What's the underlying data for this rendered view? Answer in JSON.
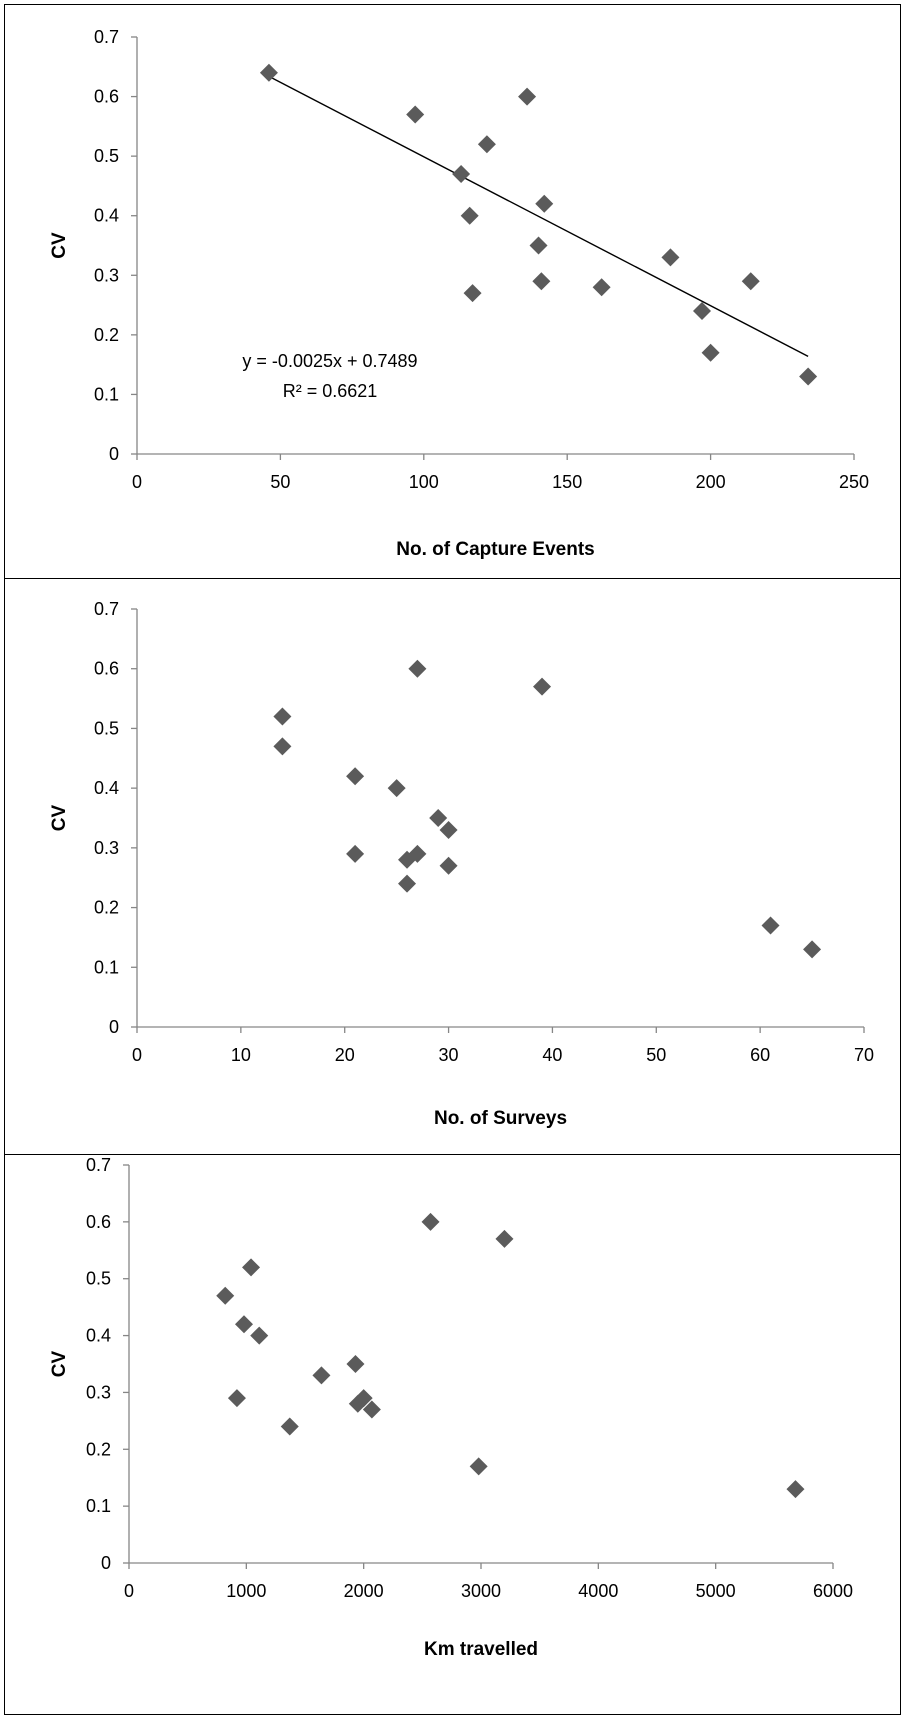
{
  "chart_data": [
    {
      "type": "scatter",
      "xlabel": "No. of Capture Events",
      "ylabel": "CV",
      "xlim": [
        0,
        250
      ],
      "ylim": [
        0,
        0.7
      ],
      "xticks": [
        "0",
        "50",
        "100",
        "150",
        "200",
        "250"
      ],
      "yticks": [
        "0",
        "0.1",
        "0.2",
        "0.3",
        "0.4",
        "0.5",
        "0.6",
        "0.7"
      ],
      "grid": false,
      "points": [
        {
          "x": 46,
          "y": 0.64
        },
        {
          "x": 97,
          "y": 0.57
        },
        {
          "x": 113,
          "y": 0.47
        },
        {
          "x": 116,
          "y": 0.4
        },
        {
          "x": 117,
          "y": 0.27
        },
        {
          "x": 122,
          "y": 0.52
        },
        {
          "x": 136,
          "y": 0.6
        },
        {
          "x": 140,
          "y": 0.35
        },
        {
          "x": 141,
          "y": 0.29
        },
        {
          "x": 142,
          "y": 0.42
        },
        {
          "x": 162,
          "y": 0.28
        },
        {
          "x": 186,
          "y": 0.33
        },
        {
          "x": 197,
          "y": 0.24
        },
        {
          "x": 200,
          "y": 0.17
        },
        {
          "x": 214,
          "y": 0.29
        },
        {
          "x": 234,
          "y": 0.13
        }
      ],
      "trendline": {
        "slope": -0.0025,
        "intercept": 0.7489,
        "x_range": [
          46,
          234
        ],
        "equation": "y = -0.0025x + 0.7489",
        "r_squared": "R² = 0.6621"
      }
    },
    {
      "type": "scatter",
      "xlabel": "No. of Surveys",
      "ylabel": "CV",
      "xlim": [
        0,
        70
      ],
      "ylim": [
        0,
        0.7
      ],
      "xticks": [
        "0",
        "10",
        "20",
        "30",
        "40",
        "50",
        "60",
        "70"
      ],
      "yticks": [
        "0",
        "0.1",
        "0.2",
        "0.3",
        "0.4",
        "0.5",
        "0.6",
        "0.7"
      ],
      "grid": false,
      "points": [
        {
          "x": 14,
          "y": 0.52
        },
        {
          "x": 14,
          "y": 0.47
        },
        {
          "x": 21,
          "y": 0.42
        },
        {
          "x": 21,
          "y": 0.29
        },
        {
          "x": 25,
          "y": 0.4
        },
        {
          "x": 26,
          "y": 0.28
        },
        {
          "x": 26,
          "y": 0.24
        },
        {
          "x": 27,
          "y": 0.6
        },
        {
          "x": 27,
          "y": 0.29
        },
        {
          "x": 29,
          "y": 0.35
        },
        {
          "x": 30,
          "y": 0.33
        },
        {
          "x": 30,
          "y": 0.27
        },
        {
          "x": 39,
          "y": 0.57
        },
        {
          "x": 61,
          "y": 0.17
        },
        {
          "x": 65,
          "y": 0.13
        }
      ]
    },
    {
      "type": "scatter",
      "xlabel": "Km travelled",
      "ylabel": "CV",
      "xlim": [
        0,
        6000
      ],
      "ylim": [
        0,
        0.7
      ],
      "xticks": [
        "0",
        "1000",
        "2000",
        "3000",
        "4000",
        "5000",
        "6000"
      ],
      "yticks": [
        "0",
        "0.1",
        "0.2",
        "0.3",
        "0.4",
        "0.5",
        "0.6",
        "0.7"
      ],
      "grid": false,
      "points": [
        {
          "x": 820,
          "y": 0.47
        },
        {
          "x": 920,
          "y": 0.29
        },
        {
          "x": 980,
          "y": 0.42
        },
        {
          "x": 1040,
          "y": 0.52
        },
        {
          "x": 1110,
          "y": 0.4
        },
        {
          "x": 1370,
          "y": 0.24
        },
        {
          "x": 1640,
          "y": 0.33
        },
        {
          "x": 1930,
          "y": 0.35
        },
        {
          "x": 1950,
          "y": 0.28
        },
        {
          "x": 2000,
          "y": 0.29
        },
        {
          "x": 2070,
          "y": 0.27
        },
        {
          "x": 2570,
          "y": 0.6
        },
        {
          "x": 2980,
          "y": 0.17
        },
        {
          "x": 3200,
          "y": 0.57
        },
        {
          "x": 5680,
          "y": 0.13
        }
      ]
    }
  ]
}
